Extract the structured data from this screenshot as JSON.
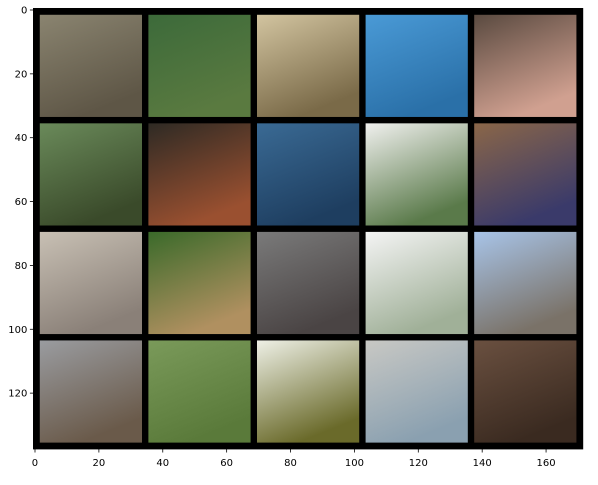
{
  "chart_data": {
    "type": "image",
    "xlim": [
      -0.5,
      171.5
    ],
    "ylim": [
      137.5,
      -0.5
    ],
    "xticks": [
      0,
      20,
      40,
      60,
      80,
      100,
      120,
      140,
      160
    ],
    "yticks": [
      0,
      20,
      40,
      60,
      80,
      100,
      120
    ],
    "grid": false
  }
}
